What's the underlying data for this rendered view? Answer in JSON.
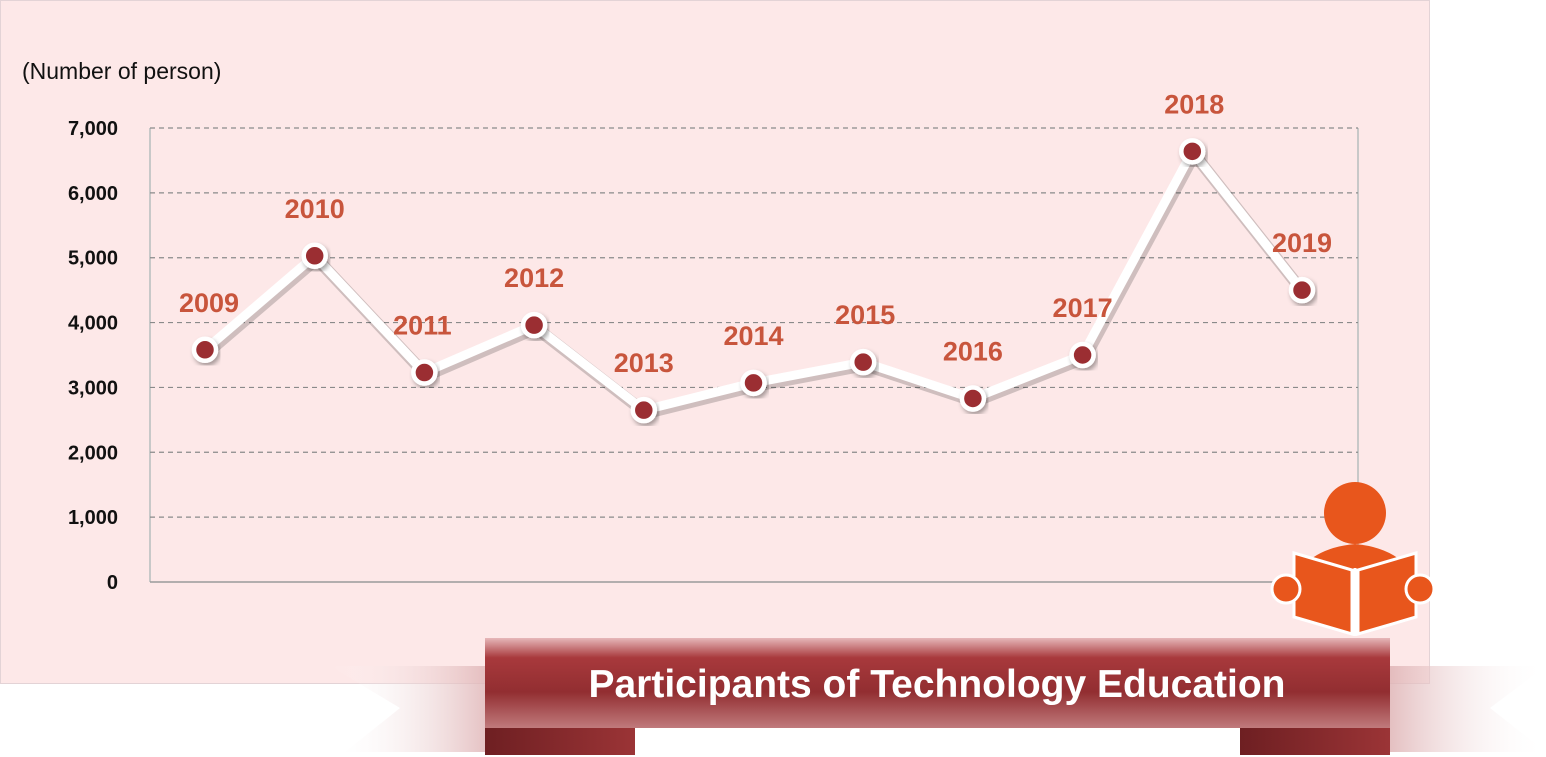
{
  "chart_data": {
    "type": "line",
    "title": "Participants of Technology Education",
    "ylabel": "(Number of person)",
    "ylim": [
      0,
      7000
    ],
    "yticks": [
      "0",
      "1,000",
      "2,000",
      "3,000",
      "4,000",
      "5,000",
      "6,000",
      "7,000"
    ],
    "categories": [
      "2009",
      "2010",
      "2011",
      "2012",
      "2013",
      "2014",
      "2015",
      "2016",
      "2017",
      "2018",
      "2019"
    ],
    "values": [
      3580,
      5030,
      3230,
      3960,
      2650,
      3070,
      3390,
      2830,
      3500,
      6640,
      4500
    ],
    "grid": true,
    "colors": {
      "panel": "#fde8e8",
      "line": "#ffffff",
      "marker": "#9b2f32",
      "point_label": "#c8553c",
      "banner": "#9b3436",
      "icon": "#e8561c"
    }
  },
  "icons": [
    "reading-person-icon"
  ]
}
